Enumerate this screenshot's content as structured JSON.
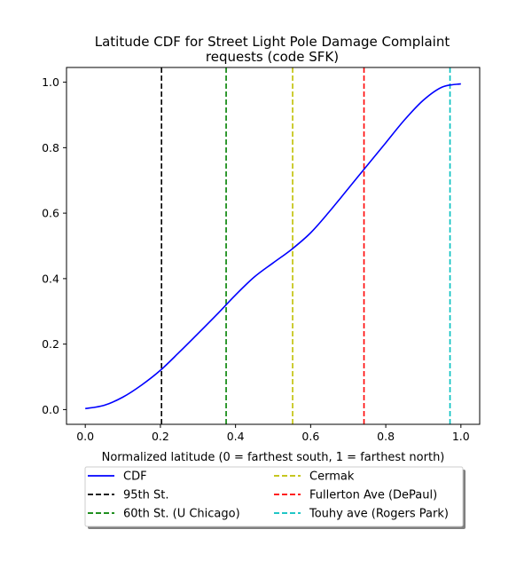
{
  "chart_data": {
    "type": "line",
    "title_lines": [
      "Latitude CDF for Street Light Pole Damage Complaint",
      "requests (code SFK)"
    ],
    "xlabel": "Normalized latitude (0 = farthest south, 1 = farthest north)",
    "ylabel": "",
    "xlim": [
      -0.05,
      1.05
    ],
    "ylim": [
      -0.045,
      1.045
    ],
    "xticks": [
      0.0,
      0.2,
      0.4,
      0.6,
      0.8,
      1.0
    ],
    "xtick_labels": [
      "0.0",
      "0.2",
      "0.4",
      "0.6",
      "0.8",
      "1.0"
    ],
    "yticks": [
      0.0,
      0.2,
      0.4,
      0.6,
      0.8,
      1.0
    ],
    "ytick_labels": [
      "0.0",
      "0.2",
      "0.4",
      "0.6",
      "0.8",
      "1.0"
    ],
    "grid": false,
    "legend_placement": "below plot, two columns",
    "series": [
      {
        "name": "CDF",
        "color": "#0000ff",
        "style": "solid",
        "x": [
          0.0,
          0.05,
          0.1,
          0.15,
          0.2,
          0.25,
          0.3,
          0.35,
          0.4,
          0.45,
          0.5,
          0.55,
          0.6,
          0.65,
          0.7,
          0.75,
          0.8,
          0.85,
          0.9,
          0.95,
          1.0
        ],
        "y": [
          0.003,
          0.013,
          0.038,
          0.075,
          0.12,
          0.175,
          0.232,
          0.29,
          0.35,
          0.405,
          0.448,
          0.49,
          0.54,
          0.605,
          0.675,
          0.745,
          0.815,
          0.885,
          0.945,
          0.985,
          0.995
        ]
      }
    ],
    "vlines": [
      {
        "name": "95th St.",
        "x": 0.203,
        "color": "#000000"
      },
      {
        "name": "60th St. (U Chicago)",
        "x": 0.375,
        "color": "#008000"
      },
      {
        "name": "Cermak",
        "x": 0.552,
        "color": "#bfbf00"
      },
      {
        "name": "Fullerton Ave (DePaul)",
        "x": 0.742,
        "color": "#ff0000"
      },
      {
        "name": "Touhy ave (Rogers Park)",
        "x": 0.971,
        "color": "#00bfbf"
      }
    ]
  }
}
